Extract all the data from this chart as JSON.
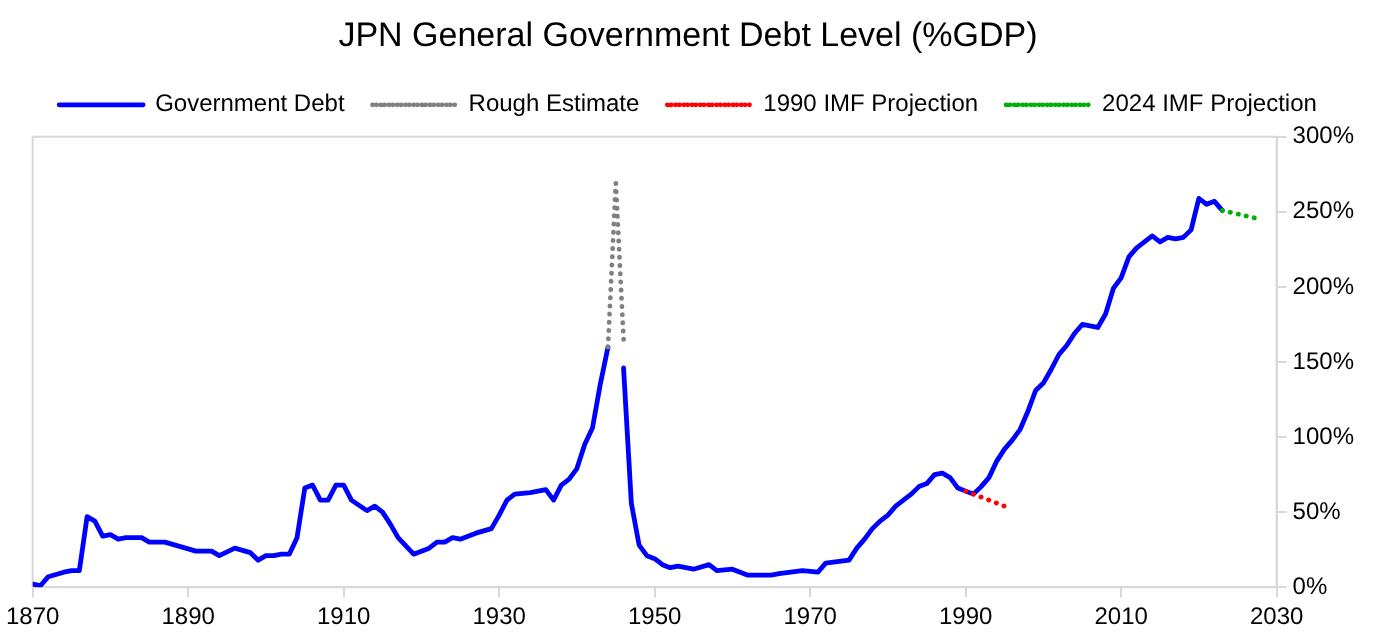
{
  "chart_data": {
    "type": "line",
    "title": "JPN General Government Debt Level (%GDP)",
    "legend": "top",
    "grid": false,
    "marker": "none",
    "xlim": [
      1870,
      2030
    ],
    "xticks": [
      1870,
      1890,
      1910,
      1930,
      1950,
      1970,
      1990,
      2010,
      2030
    ],
    "ylim": [
      0,
      300
    ],
    "yticks": [
      {
        "value": 0,
        "label": "0%"
      },
      {
        "value": 50,
        "label": "50%"
      },
      {
        "value": 100,
        "label": "100%"
      },
      {
        "value": 150,
        "label": "150%"
      },
      {
        "value": 200,
        "label": "200%"
      },
      {
        "value": 250,
        "label": "250%"
      },
      {
        "value": 300,
        "label": "300%"
      }
    ],
    "series": [
      {
        "name": "Government Debt",
        "color": "#0000ff",
        "line_style": "solid",
        "x": [
          1870,
          1871,
          1872,
          1874,
          1875,
          1876,
          1877,
          1878,
          1879,
          1880,
          1881,
          1882,
          1884,
          1885,
          1887,
          1889,
          1891,
          1893,
          1894,
          1896,
          1898,
          1899,
          1900,
          1901,
          1902,
          1903,
          1904,
          1905,
          1906,
          1907,
          1908,
          1909,
          1910,
          1911,
          1913,
          1914,
          1915,
          1916,
          1917,
          1919,
          1921,
          1922,
          1923,
          1924,
          1925,
          1927,
          1929,
          1930,
          1931,
          1932,
          1934,
          1936,
          1937,
          1938,
          1939,
          1940,
          1941,
          1942,
          1943,
          1944,
          1945,
          1946,
          1947,
          1948,
          1949,
          1950,
          1951,
          1952,
          1953,
          1955,
          1957,
          1958,
          1960,
          1962,
          1965,
          1966,
          1969,
          1971,
          1972,
          1975,
          1976,
          1977,
          1978,
          1979,
          1980,
          1981,
          1982,
          1983,
          1984,
          1985,
          1986,
          1987,
          1988,
          1989,
          1990,
          1991,
          1992,
          1993,
          1994,
          1995,
          1996,
          1997,
          1998,
          1999,
          2000,
          2001,
          2002,
          2003,
          2004,
          2005,
          2006,
          2007,
          2008,
          2009,
          2010,
          2011,
          2012,
          2013,
          2014,
          2015,
          2016,
          2017,
          2018,
          2019,
          2020,
          2021,
          2022,
          2023
        ],
        "values": [
          2,
          1,
          7,
          10,
          11,
          11,
          47,
          44,
          34,
          35,
          32,
          33,
          33,
          30,
          30,
          27,
          24,
          24,
          21,
          26,
          23,
          18,
          21,
          21,
          22,
          22,
          33,
          66,
          68,
          58,
          58,
          68,
          68,
          58,
          51,
          54,
          50,
          42,
          33,
          22,
          26,
          30,
          30,
          33,
          32,
          36,
          39,
          48,
          58,
          62,
          63,
          65,
          58,
          68,
          72,
          79,
          95,
          106,
          135,
          160,
          null,
          146,
          56,
          28,
          21,
          19,
          15,
          13,
          14,
          12,
          15,
          11,
          12,
          8,
          8,
          9,
          11,
          10,
          16,
          18,
          26,
          32,
          39,
          44,
          48,
          54,
          58,
          62,
          67,
          69,
          75,
          76,
          73,
          66,
          64,
          62,
          67,
          73,
          84,
          92,
          98,
          105,
          117,
          131,
          136,
          145,
          155,
          161,
          169,
          175,
          174,
          173,
          182,
          199,
          206,
          220,
          226,
          230,
          234,
          230,
          233,
          232,
          233,
          238,
          259,
          255,
          257,
          251
        ]
      },
      {
        "name": "Rough Estimate",
        "color": "#808080",
        "line_style": "dotted",
        "x": [
          1944,
          1945,
          1946
        ],
        "values": [
          160,
          269,
          165
        ]
      },
      {
        "name": "1990 IMF Projection",
        "color": "#ff0000",
        "line_style": "dotted",
        "x": [
          1990,
          1995
        ],
        "values": [
          64,
          54
        ]
      },
      {
        "name": "2024 IMF Projection",
        "color": "#00b000",
        "line_style": "dotted",
        "x": [
          2023,
          2028
        ],
        "values": [
          251,
          245
        ]
      }
    ]
  }
}
